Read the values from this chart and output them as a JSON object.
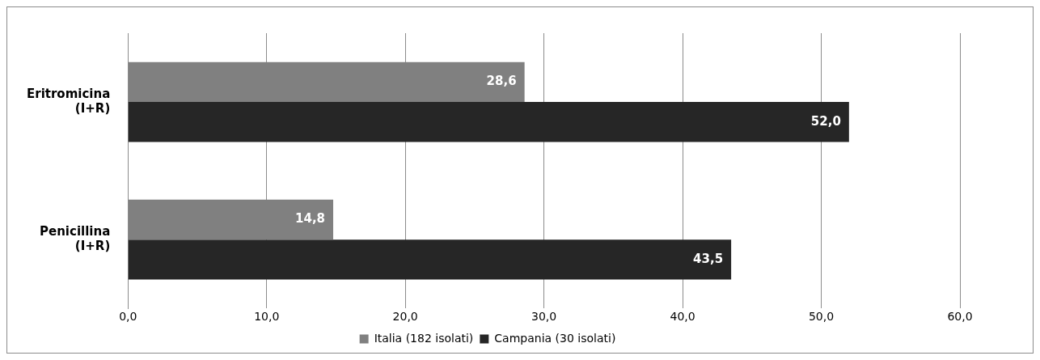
{
  "chart_data": {
    "type": "bar",
    "orientation": "horizontal",
    "categories": [
      "Eritromicina\n(I+R)",
      "Penicillina\n(I+R)"
    ],
    "series": [
      {
        "name": "Italia (182 isolati)",
        "color": "#808080",
        "values": [
          28.6,
          14.8
        ],
        "value_labels": [
          "28,6",
          "14,8"
        ]
      },
      {
        "name": "Campania (30 isolati)",
        "color": "#262626",
        "values": [
          52.0,
          43.5
        ],
        "value_labels": [
          "52,0",
          "43,5"
        ]
      }
    ],
    "xlim": [
      0,
      60
    ],
    "xticks": [
      {
        "value": 0,
        "label": "0,0"
      },
      {
        "value": 10,
        "label": "10,0"
      },
      {
        "value": 20,
        "label": "20,0"
      },
      {
        "value": 30,
        "label": "30,0"
      },
      {
        "value": 40,
        "label": "40,0"
      },
      {
        "value": 50,
        "label": "50,0"
      },
      {
        "value": 60,
        "label": "60,0"
      }
    ],
    "grid": "x",
    "legend": "bottom"
  }
}
